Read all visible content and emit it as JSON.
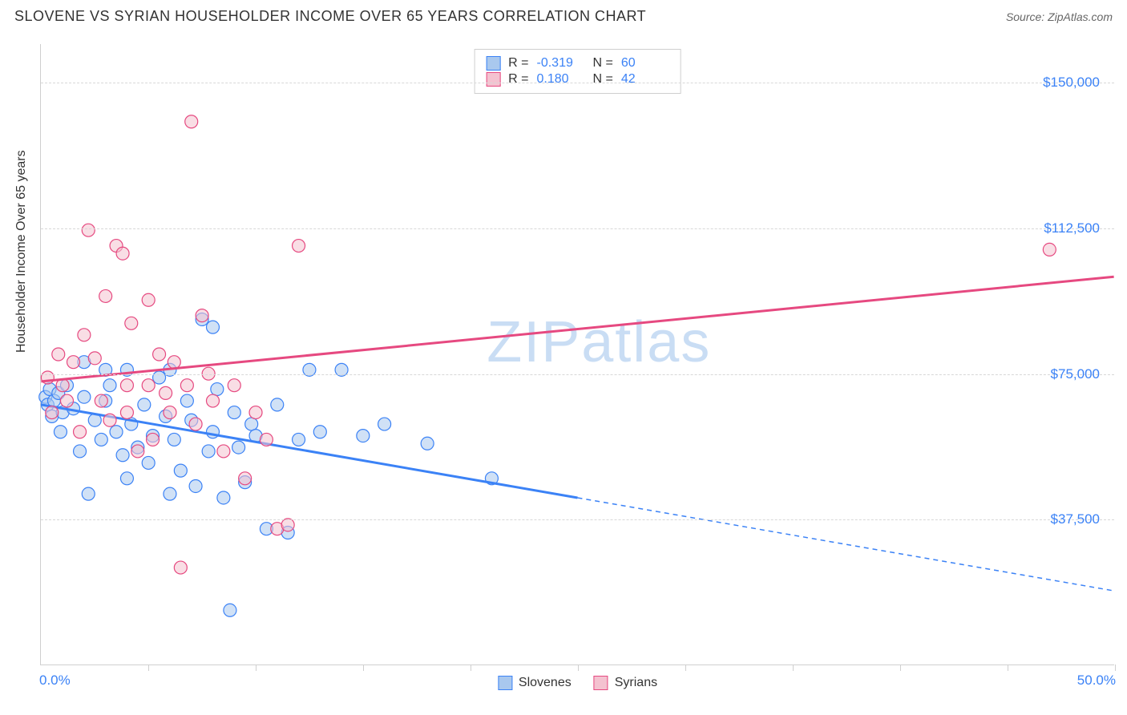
{
  "header": {
    "title": "SLOVENE VS SYRIAN HOUSEHOLDER INCOME OVER 65 YEARS CORRELATION CHART",
    "source": "Source: ZipAtlas.com"
  },
  "watermark": "ZIPatlas",
  "chart": {
    "type": "scatter",
    "ylabel": "Householder Income Over 65 years",
    "xlim": [
      0,
      50
    ],
    "ylim": [
      0,
      160000
    ],
    "yticks": [
      {
        "v": 37500,
        "label": "$37,500"
      },
      {
        "v": 75000,
        "label": "$75,000"
      },
      {
        "v": 112500,
        "label": "$112,500"
      },
      {
        "v": 150000,
        "label": "$150,000"
      }
    ],
    "xtick_positions": [
      5,
      10,
      15,
      20,
      25,
      30,
      35,
      40,
      45,
      50
    ],
    "xtick_labels": {
      "low": "0.0%",
      "high": "50.0%"
    },
    "grid_color": "#d8d8d8",
    "axis_color": "#cfcfcf",
    "background_color": "#ffffff",
    "marker_radius": 8,
    "marker_opacity": 0.55,
    "line_width": 3,
    "series": [
      {
        "name": "Slovenes",
        "color_fill": "#a9c8ee",
        "color_stroke": "#3b82f6",
        "regression": {
          "x0": 0,
          "y0": 67000,
          "x1": 25,
          "y1": 43000,
          "x2": 50,
          "y2": 19000,
          "solid_until_x": 25
        },
        "stats": {
          "R": "-0.319",
          "N": "60"
        },
        "points": [
          [
            0.2,
            69000
          ],
          [
            0.3,
            67000
          ],
          [
            0.4,
            71000
          ],
          [
            0.5,
            64000
          ],
          [
            0.6,
            68000
          ],
          [
            0.8,
            70000
          ],
          [
            0.9,
            60000
          ],
          [
            1.0,
            65000
          ],
          [
            1.2,
            72000
          ],
          [
            1.5,
            66000
          ],
          [
            1.8,
            55000
          ],
          [
            2.0,
            69000
          ],
          [
            2.2,
            44000
          ],
          [
            2.5,
            63000
          ],
          [
            2.8,
            58000
          ],
          [
            3.0,
            68000
          ],
          [
            3.2,
            72000
          ],
          [
            3.5,
            60000
          ],
          [
            3.8,
            54000
          ],
          [
            4.0,
            48000
          ],
          [
            4.2,
            62000
          ],
          [
            4.5,
            56000
          ],
          [
            4.8,
            67000
          ],
          [
            5.0,
            52000
          ],
          [
            5.2,
            59000
          ],
          [
            5.5,
            74000
          ],
          [
            5.8,
            64000
          ],
          [
            6.0,
            44000
          ],
          [
            6.2,
            58000
          ],
          [
            6.5,
            50000
          ],
          [
            6.8,
            68000
          ],
          [
            7.0,
            63000
          ],
          [
            7.2,
            46000
          ],
          [
            7.5,
            89000
          ],
          [
            7.8,
            55000
          ],
          [
            8.0,
            60000
          ],
          [
            8.2,
            71000
          ],
          [
            8.5,
            43000
          ],
          [
            9.0,
            65000
          ],
          [
            9.2,
            56000
          ],
          [
            9.5,
            47000
          ],
          [
            9.8,
            62000
          ],
          [
            10.0,
            59000
          ],
          [
            10.5,
            35000
          ],
          [
            11.0,
            67000
          ],
          [
            11.5,
            34000
          ],
          [
            12.0,
            58000
          ],
          [
            12.5,
            76000
          ],
          [
            13.0,
            60000
          ],
          [
            14.0,
            76000
          ],
          [
            15.0,
            59000
          ],
          [
            16.0,
            62000
          ],
          [
            18.0,
            57000
          ],
          [
            21.0,
            48000
          ],
          [
            8.8,
            14000
          ],
          [
            8.0,
            87000
          ],
          [
            6.0,
            76000
          ],
          [
            4.0,
            76000
          ],
          [
            3.0,
            76000
          ],
          [
            2.0,
            78000
          ]
        ]
      },
      {
        "name": "Syrians",
        "color_fill": "#f4c2d0",
        "color_stroke": "#e64980",
        "regression": {
          "x0": 0,
          "y0": 73000,
          "x1": 50,
          "y1": 100000
        },
        "stats": {
          "R": "0.180",
          "N": "42"
        },
        "points": [
          [
            0.3,
            74000
          ],
          [
            0.5,
            65000
          ],
          [
            0.8,
            80000
          ],
          [
            1.0,
            72000
          ],
          [
            1.2,
            68000
          ],
          [
            1.5,
            78000
          ],
          [
            1.8,
            60000
          ],
          [
            2.0,
            85000
          ],
          [
            2.2,
            112000
          ],
          [
            2.5,
            79000
          ],
          [
            2.8,
            68000
          ],
          [
            3.0,
            95000
          ],
          [
            3.2,
            63000
          ],
          [
            3.5,
            108000
          ],
          [
            3.8,
            106000
          ],
          [
            4.0,
            72000
          ],
          [
            4.2,
            88000
          ],
          [
            4.5,
            55000
          ],
          [
            5.0,
            94000
          ],
          [
            5.2,
            58000
          ],
          [
            5.5,
            80000
          ],
          [
            5.8,
            70000
          ],
          [
            6.0,
            65000
          ],
          [
            6.2,
            78000
          ],
          [
            6.5,
            25000
          ],
          [
            7.0,
            140000
          ],
          [
            7.2,
            62000
          ],
          [
            7.5,
            90000
          ],
          [
            7.8,
            75000
          ],
          [
            8.0,
            68000
          ],
          [
            8.5,
            55000
          ],
          [
            9.0,
            72000
          ],
          [
            9.5,
            48000
          ],
          [
            10.0,
            65000
          ],
          [
            10.5,
            58000
          ],
          [
            11.0,
            35000
          ],
          [
            12.0,
            108000
          ],
          [
            11.5,
            36000
          ],
          [
            6.8,
            72000
          ],
          [
            5.0,
            72000
          ],
          [
            4.0,
            65000
          ],
          [
            47.0,
            107000
          ]
        ]
      }
    ],
    "bottom_legend": [
      {
        "label": "Slovenes",
        "fill": "#a9c8ee",
        "stroke": "#3b82f6"
      },
      {
        "label": "Syrians",
        "fill": "#f4c2d0",
        "stroke": "#e64980"
      }
    ],
    "stats_box": {
      "rows": [
        {
          "swatch_fill": "#a9c8ee",
          "swatch_stroke": "#3b82f6",
          "R": "-0.319",
          "N": "60"
        },
        {
          "swatch_fill": "#f4c2d0",
          "swatch_stroke": "#e64980",
          "R": "0.180",
          "N": "42"
        }
      ]
    }
  }
}
